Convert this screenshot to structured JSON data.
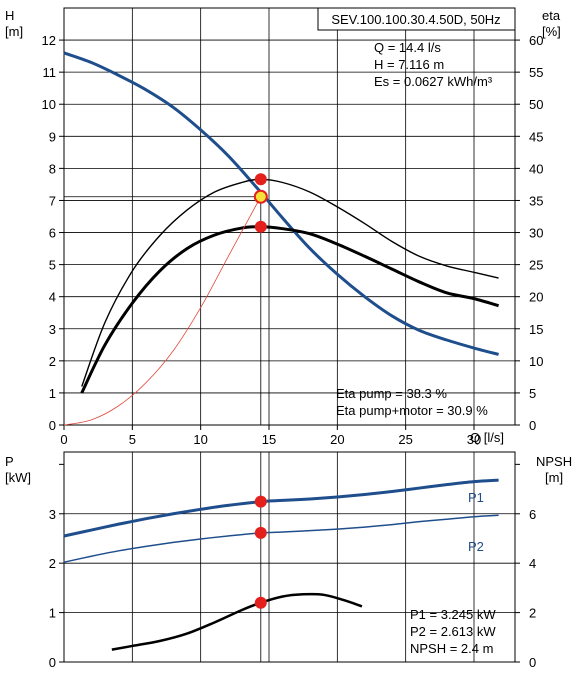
{
  "chart_data": [
    {
      "type": "line",
      "title": "SEV.100.100.30.4.50D, 50Hz",
      "xlabel": "Q [l/s]",
      "ylabel": "H\n[m]",
      "ylabel_right": "eta\n[%]",
      "xlim": [
        0,
        33
      ],
      "ylim": [
        0,
        13
      ],
      "ylim_right": [
        0,
        65
      ],
      "xticks": [
        0,
        5,
        10,
        15,
        20,
        25,
        30
      ],
      "yticks": [
        0,
        1,
        2,
        3,
        4,
        5,
        6,
        7,
        8,
        9,
        10,
        11,
        12
      ],
      "yticks_right": [
        0,
        5,
        10,
        15,
        20,
        25,
        30,
        35,
        40,
        45,
        50,
        55,
        60
      ],
      "grid": true,
      "annotations": [
        "Q = 14.4 l/s",
        "H = 7.116 m",
        "Es = 0.0627 kWh/m³"
      ],
      "annotations_bottom": [
        "Eta pump = 38.3 %",
        "Eta pump+motor = 30.9 %"
      ],
      "operating_point": {
        "x": 14.4,
        "y": 7.116
      },
      "series": [
        {
          "role": "head",
          "axis": "left",
          "color": "#1f4e8c",
          "x": [
            0,
            2,
            4,
            6,
            8,
            10,
            12,
            14,
            16,
            18,
            20,
            22,
            24,
            26,
            28,
            30,
            31.8
          ],
          "values": [
            11.6,
            11.3,
            10.9,
            10.45,
            9.9,
            9.2,
            8.4,
            7.45,
            6.45,
            5.5,
            4.7,
            4.0,
            3.4,
            2.95,
            2.65,
            2.4,
            2.2
          ]
        },
        {
          "role": "eta-pump",
          "axis": "right",
          "color": "#000000",
          "x": [
            1.3,
            3,
            5,
            7,
            9,
            11,
            13,
            14.4,
            16,
            18,
            20,
            22,
            24,
            26,
            28,
            30,
            31.8
          ],
          "values": [
            6,
            16,
            24,
            29.5,
            33.5,
            36.3,
            37.8,
            38.3,
            37.8,
            36.3,
            34,
            31.4,
            28.6,
            26.3,
            24.8,
            23.8,
            22.9
          ]
        },
        {
          "role": "eta-pump-motor",
          "axis": "right",
          "color": "#000000",
          "x": [
            1.3,
            3,
            5,
            7,
            9,
            11,
            13,
            14.4,
            16,
            18,
            20,
            22,
            24,
            26,
            28,
            30,
            31.8
          ],
          "values": [
            5,
            12.5,
            19,
            24,
            27.5,
            29.6,
            30.7,
            30.9,
            30.6,
            29.8,
            28.2,
            26.3,
            24.3,
            22.3,
            20.6,
            19.7,
            18.6
          ]
        },
        {
          "role": "eta-ref",
          "axis": "right",
          "color": "#e04a3c",
          "x": [
            0,
            2,
            4,
            6,
            8,
            10,
            12,
            14.4
          ],
          "values": [
            0,
            0.8,
            3,
            6.6,
            11.6,
            18.3,
            26.2,
            35.6
          ]
        }
      ],
      "markers": [
        {
          "x": 14.4,
          "y": 38.3,
          "axis": "right"
        },
        {
          "x": 14.4,
          "y": 7.116,
          "axis": "left"
        },
        {
          "x": 14.4,
          "y": 30.9,
          "axis": "right"
        }
      ]
    },
    {
      "type": "line",
      "xlabel": "",
      "ylabel": "P\n[kW]",
      "ylabel_right": "NPSH\n[m]",
      "xlim": [
        0,
        33
      ],
      "ylim": [
        0,
        4.25
      ],
      "ylim_right": [
        0,
        8.5
      ],
      "yticks": [
        0,
        1,
        2,
        3
      ],
      "yticks_right": [
        0,
        2,
        4,
        6
      ],
      "grid": true,
      "annotations": [
        "P1 = 3.245 kW",
        "P2 = 2.613 kW",
        "NPSH = 2.4 m"
      ],
      "series": [
        {
          "name": "P1",
          "axis": "left",
          "color": "#1f4e8c",
          "x": [
            0,
            2,
            4,
            6,
            8,
            10,
            12,
            14.4,
            16,
            18,
            20,
            22,
            24,
            26,
            28,
            30,
            31.8
          ],
          "values": [
            2.55,
            2.67,
            2.79,
            2.9,
            3.0,
            3.09,
            3.17,
            3.245,
            3.27,
            3.3,
            3.34,
            3.39,
            3.45,
            3.52,
            3.59,
            3.65,
            3.68
          ]
        },
        {
          "name": "P2",
          "axis": "left",
          "color": "#1f4e8c",
          "x": [
            0,
            2,
            4,
            6,
            8,
            10,
            12,
            14.4,
            16,
            18,
            20,
            22,
            24,
            26,
            28,
            30,
            31.8
          ],
          "values": [
            2.02,
            2.14,
            2.25,
            2.34,
            2.42,
            2.49,
            2.55,
            2.613,
            2.63,
            2.66,
            2.69,
            2.73,
            2.78,
            2.84,
            2.89,
            2.94,
            2.97
          ]
        },
        {
          "role": "npsh",
          "axis": "right",
          "color": "#000000",
          "x": [
            3.5,
            5,
            7,
            9,
            11,
            13,
            14.4,
            16,
            17.5,
            19,
            20.5,
            21.8
          ],
          "values": [
            0.5,
            0.65,
            0.85,
            1.15,
            1.6,
            2.1,
            2.4,
            2.65,
            2.74,
            2.72,
            2.5,
            2.25
          ]
        }
      ],
      "markers": [
        {
          "x": 14.4,
          "y": 3.245,
          "axis": "left"
        },
        {
          "x": 14.4,
          "y": 2.613,
          "axis": "left"
        },
        {
          "x": 14.4,
          "y": 2.4,
          "axis": "right"
        }
      ],
      "series_labels": [
        "P1",
        "P2"
      ]
    }
  ]
}
